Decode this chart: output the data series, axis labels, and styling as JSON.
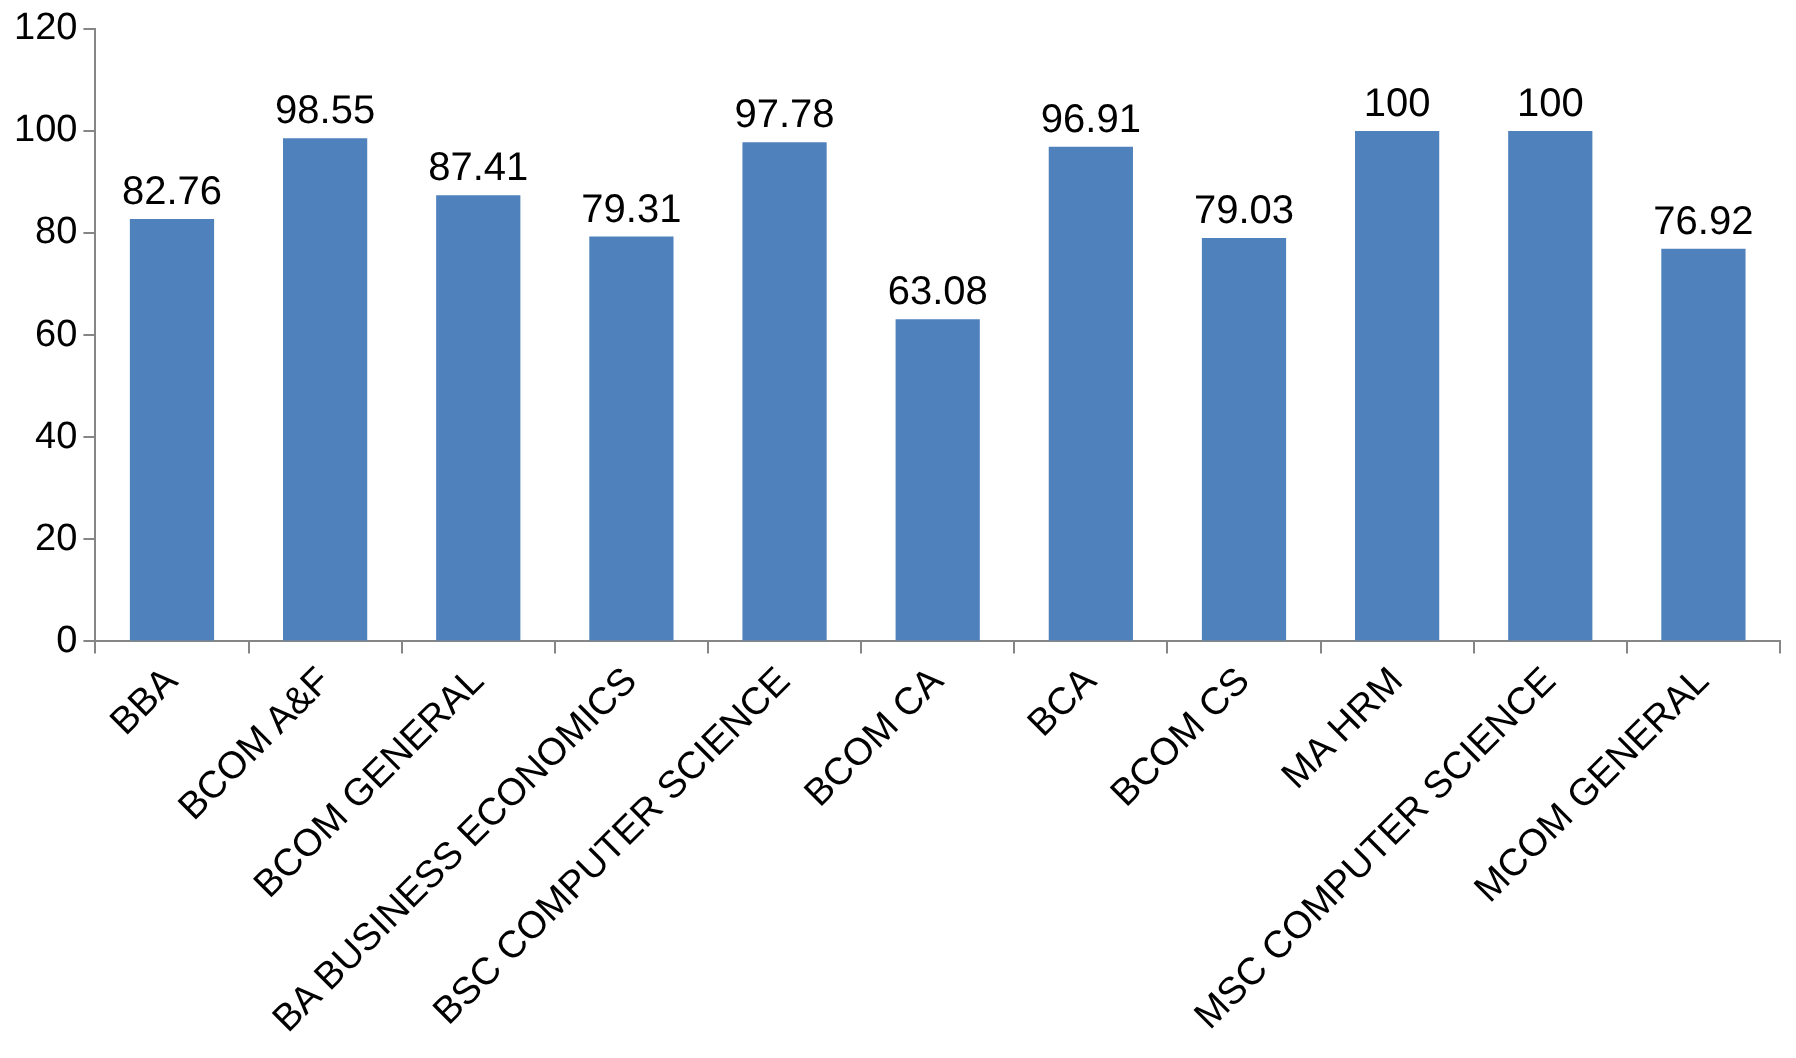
{
  "chart_data": {
    "type": "bar",
    "categories": [
      "BBA",
      "BCOM A&F",
      "BCOM GENERAL",
      "BA BUSINESS ECONOMICS",
      "BSC COMPUTER SCIENCE",
      "BCOM CA",
      "BCA",
      "BCOM CS",
      "MA HRM",
      "MSC COMPUTER SCIENCE",
      "MCOM GENERAL"
    ],
    "values": [
      82.76,
      98.55,
      87.41,
      79.31,
      97.78,
      63.08,
      96.91,
      79.03,
      100,
      100,
      76.92
    ],
    "color": "#4f81bd",
    "ylim": [
      0,
      120
    ],
    "yticks": [
      0,
      20,
      40,
      60,
      80,
      100,
      120
    ],
    "grid": false,
    "data_labels": true
  }
}
